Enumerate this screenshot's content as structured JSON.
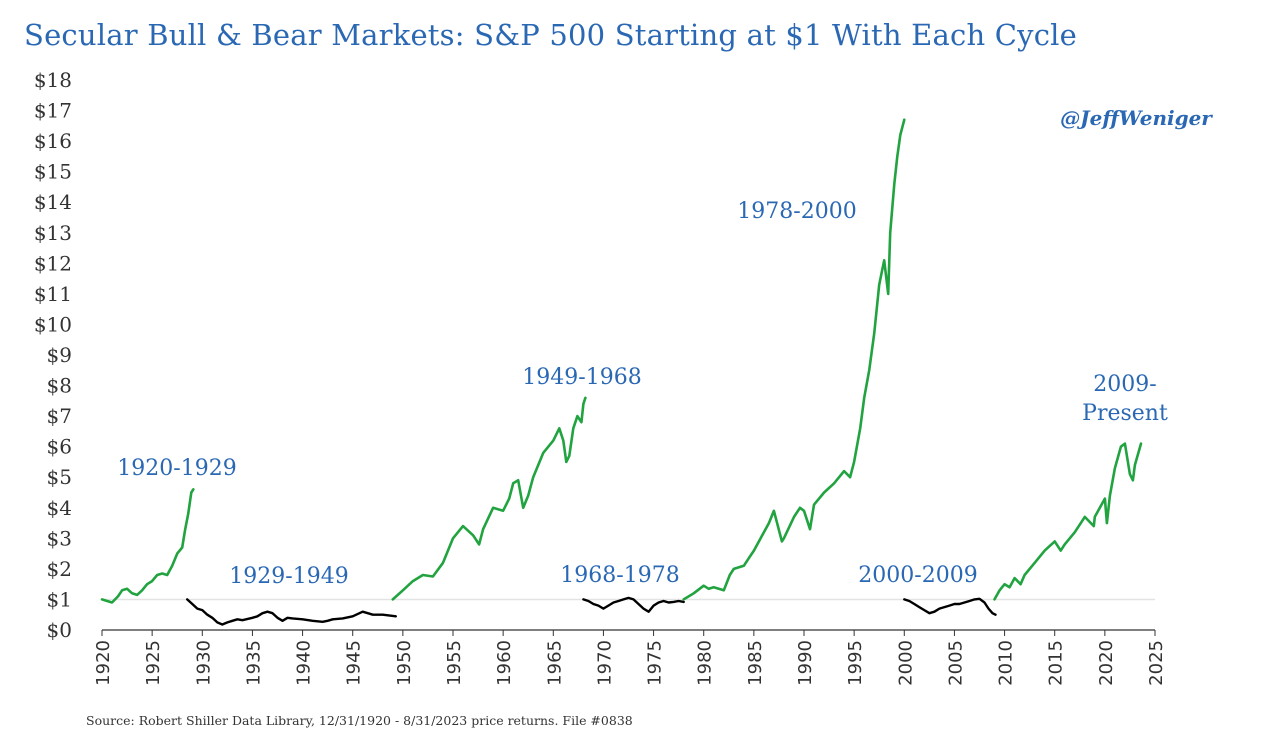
{
  "colors": {
    "title": "#2a68b4",
    "label": "#2a68b4",
    "bull": "#21a340",
    "bear": "#000000",
    "axis": "#333333",
    "reference_line": "#e3e3e3"
  },
  "chart_data": {
    "type": "line",
    "title": "Secular Bull & Bear Markets: S&P 500 Starting at $1 With Each Cycle",
    "xlabel": "",
    "ylabel": "",
    "xlim": [
      1920,
      2025
    ],
    "ylim": [
      0,
      18
    ],
    "x_ticks": [
      "1920",
      "1925",
      "1930",
      "1935",
      "1940",
      "1945",
      "1950",
      "1955",
      "1960",
      "1965",
      "1970",
      "1975",
      "1980",
      "1985",
      "1990",
      "1995",
      "2000",
      "2005",
      "2010",
      "2015",
      "2020",
      "2025"
    ],
    "y_ticks": [
      "$0",
      "$1",
      "$2",
      "$3",
      "$4",
      "$5",
      "$6",
      "$7",
      "$8",
      "$9",
      "$10",
      "$11",
      "$12",
      "$13",
      "$14",
      "$15",
      "$16",
      "$17",
      "$18"
    ],
    "grid": false,
    "reference_line_y": 1,
    "annotations": [
      "@JeffWeniger"
    ],
    "source": "Source: Robert Shiller Data Library, 12/31/1920 - 8/31/2023 price returns. File #0838",
    "series": [
      {
        "label": "1920-1929",
        "kind": "bull",
        "points": [
          [
            1920,
            1.0
          ],
          [
            1921,
            0.9
          ],
          [
            1921.6,
            1.1
          ],
          [
            1922,
            1.3
          ],
          [
            1922.5,
            1.35
          ],
          [
            1923,
            1.2
          ],
          [
            1923.5,
            1.15
          ],
          [
            1924,
            1.3
          ],
          [
            1924.5,
            1.5
          ],
          [
            1925,
            1.6
          ],
          [
            1925.5,
            1.8
          ],
          [
            1926,
            1.85
          ],
          [
            1926.5,
            1.8
          ],
          [
            1927,
            2.1
          ],
          [
            1927.5,
            2.5
          ],
          [
            1928,
            2.7
          ],
          [
            1928.3,
            3.3
          ],
          [
            1928.6,
            3.8
          ],
          [
            1928.9,
            4.5
          ],
          [
            1929.1,
            4.6
          ]
        ]
      },
      {
        "label": "1929-1949",
        "kind": "bear",
        "points": [
          [
            1928.5,
            1.0
          ],
          [
            1929,
            0.85
          ],
          [
            1929.5,
            0.7
          ],
          [
            1930,
            0.65
          ],
          [
            1930.5,
            0.5
          ],
          [
            1931,
            0.4
          ],
          [
            1931.5,
            0.25
          ],
          [
            1932,
            0.18
          ],
          [
            1932.5,
            0.25
          ],
          [
            1933,
            0.3
          ],
          [
            1933.5,
            0.35
          ],
          [
            1934,
            0.32
          ],
          [
            1935,
            0.4
          ],
          [
            1935.5,
            0.45
          ],
          [
            1936,
            0.55
          ],
          [
            1936.5,
            0.6
          ],
          [
            1937,
            0.55
          ],
          [
            1937.5,
            0.4
          ],
          [
            1938,
            0.3
          ],
          [
            1938.5,
            0.4
          ],
          [
            1939,
            0.38
          ],
          [
            1940,
            0.35
          ],
          [
            1941,
            0.3
          ],
          [
            1942,
            0.27
          ],
          [
            1942.5,
            0.3
          ],
          [
            1943,
            0.35
          ],
          [
            1944,
            0.38
          ],
          [
            1945,
            0.45
          ],
          [
            1946,
            0.6
          ],
          [
            1946.5,
            0.55
          ],
          [
            1947,
            0.5
          ],
          [
            1948,
            0.5
          ],
          [
            1949.3,
            0.45
          ]
        ]
      },
      {
        "label": "1949-1968",
        "kind": "bull",
        "points": [
          [
            1949,
            1.0
          ],
          [
            1950,
            1.3
          ],
          [
            1951,
            1.6
          ],
          [
            1952,
            1.8
          ],
          [
            1953,
            1.75
          ],
          [
            1954,
            2.2
          ],
          [
            1955,
            3.0
          ],
          [
            1956,
            3.4
          ],
          [
            1957,
            3.1
          ],
          [
            1957.6,
            2.8
          ],
          [
            1958,
            3.3
          ],
          [
            1959,
            4.0
          ],
          [
            1960,
            3.9
          ],
          [
            1960.6,
            4.3
          ],
          [
            1961,
            4.8
          ],
          [
            1961.5,
            4.9
          ],
          [
            1962,
            4.0
          ],
          [
            1962.5,
            4.4
          ],
          [
            1963,
            5.0
          ],
          [
            1964,
            5.8
          ],
          [
            1965,
            6.2
          ],
          [
            1965.6,
            6.6
          ],
          [
            1966,
            6.2
          ],
          [
            1966.3,
            5.5
          ],
          [
            1966.6,
            5.7
          ],
          [
            1967,
            6.6
          ],
          [
            1967.4,
            7.0
          ],
          [
            1967.8,
            6.8
          ],
          [
            1968,
            7.4
          ],
          [
            1968.2,
            7.6
          ]
        ]
      },
      {
        "label": "1968-1978",
        "kind": "bear",
        "points": [
          [
            1968,
            1.0
          ],
          [
            1968.5,
            0.95
          ],
          [
            1969,
            0.85
          ],
          [
            1969.5,
            0.8
          ],
          [
            1970,
            0.7
          ],
          [
            1970.5,
            0.8
          ],
          [
            1971,
            0.9
          ],
          [
            1971.5,
            0.95
          ],
          [
            1972,
            1.0
          ],
          [
            1972.5,
            1.05
          ],
          [
            1973,
            1.0
          ],
          [
            1973.5,
            0.85
          ],
          [
            1974,
            0.7
          ],
          [
            1974.5,
            0.6
          ],
          [
            1975,
            0.8
          ],
          [
            1975.5,
            0.9
          ],
          [
            1976,
            0.95
          ],
          [
            1976.5,
            0.9
          ],
          [
            1977,
            0.92
          ],
          [
            1977.5,
            0.95
          ],
          [
            1978,
            0.92
          ]
        ]
      },
      {
        "label": "1978-2000",
        "kind": "bull",
        "points": [
          [
            1978,
            1.0
          ],
          [
            1979,
            1.2
          ],
          [
            1980,
            1.45
          ],
          [
            1980.5,
            1.35
          ],
          [
            1981,
            1.4
          ],
          [
            1982,
            1.3
          ],
          [
            1982.6,
            1.8
          ],
          [
            1983,
            2.0
          ],
          [
            1984,
            2.1
          ],
          [
            1984.6,
            2.4
          ],
          [
            1985,
            2.6
          ],
          [
            1986,
            3.2
          ],
          [
            1986.5,
            3.5
          ],
          [
            1987,
            3.9
          ],
          [
            1987.8,
            2.9
          ],
          [
            1988,
            3.0
          ],
          [
            1989,
            3.7
          ],
          [
            1989.6,
            4.0
          ],
          [
            1990,
            3.9
          ],
          [
            1990.6,
            3.3
          ],
          [
            1991,
            4.1
          ],
          [
            1992,
            4.5
          ],
          [
            1993,
            4.8
          ],
          [
            1994,
            5.2
          ],
          [
            1994.6,
            5.0
          ],
          [
            1995,
            5.5
          ],
          [
            1995.6,
            6.6
          ],
          [
            1996,
            7.6
          ],
          [
            1996.5,
            8.5
          ],
          [
            1997,
            9.7
          ],
          [
            1997.5,
            11.3
          ],
          [
            1998,
            12.1
          ],
          [
            1998.4,
            11.0
          ],
          [
            1998.6,
            13.0
          ],
          [
            1999,
            14.6
          ],
          [
            1999.3,
            15.5
          ],
          [
            1999.6,
            16.2
          ],
          [
            2000,
            16.7
          ]
        ]
      },
      {
        "label": "2000-2009",
        "kind": "bear",
        "points": [
          [
            2000,
            1.0
          ],
          [
            2000.5,
            0.95
          ],
          [
            2001,
            0.85
          ],
          [
            2001.5,
            0.75
          ],
          [
            2002,
            0.65
          ],
          [
            2002.5,
            0.55
          ],
          [
            2003,
            0.6
          ],
          [
            2003.5,
            0.7
          ],
          [
            2004,
            0.75
          ],
          [
            2004.5,
            0.8
          ],
          [
            2005,
            0.85
          ],
          [
            2005.5,
            0.85
          ],
          [
            2006,
            0.9
          ],
          [
            2006.5,
            0.95
          ],
          [
            2007,
            1.0
          ],
          [
            2007.5,
            1.02
          ],
          [
            2008,
            0.9
          ],
          [
            2008.4,
            0.7
          ],
          [
            2008.8,
            0.55
          ],
          [
            2009.1,
            0.5
          ]
        ]
      },
      {
        "label": "2009-\nPresent",
        "kind": "bull",
        "points": [
          [
            2009,
            1.0
          ],
          [
            2009.5,
            1.3
          ],
          [
            2010,
            1.5
          ],
          [
            2010.5,
            1.4
          ],
          [
            2011,
            1.7
          ],
          [
            2011.6,
            1.5
          ],
          [
            2012,
            1.8
          ],
          [
            2013,
            2.2
          ],
          [
            2014,
            2.6
          ],
          [
            2015,
            2.9
          ],
          [
            2015.6,
            2.6
          ],
          [
            2016,
            2.8
          ],
          [
            2017,
            3.2
          ],
          [
            2018,
            3.7
          ],
          [
            2018.9,
            3.4
          ],
          [
            2019,
            3.7
          ],
          [
            2019.5,
            4.0
          ],
          [
            2020,
            4.3
          ],
          [
            2020.2,
            3.5
          ],
          [
            2020.5,
            4.4
          ],
          [
            2021,
            5.3
          ],
          [
            2021.6,
            6.0
          ],
          [
            2022,
            6.1
          ],
          [
            2022.5,
            5.1
          ],
          [
            2022.8,
            4.9
          ],
          [
            2023,
            5.4
          ],
          [
            2023.6,
            6.1
          ]
        ]
      }
    ]
  }
}
